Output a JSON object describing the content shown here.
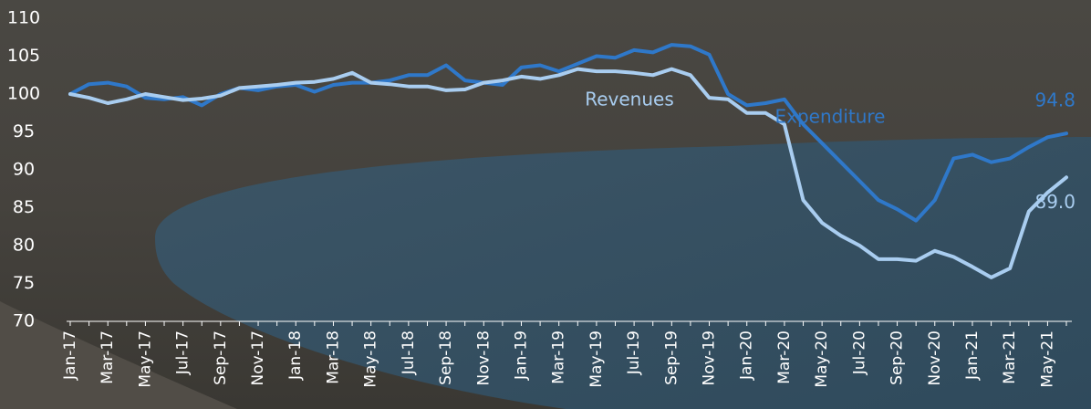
{
  "chart_data": {
    "type": "line",
    "categories": [
      "Jan-17",
      null,
      "Mar-17",
      null,
      "May-17",
      null,
      "Jul-17",
      null,
      "Sep-17",
      null,
      "Nov-17",
      null,
      "Jan-18",
      null,
      "Mar-18",
      null,
      "May-18",
      null,
      "Jul-18",
      null,
      "Sep-18",
      null,
      "Nov-18",
      null,
      "Jan-19",
      null,
      "Mar-19",
      null,
      "May-19",
      null,
      "Jul-19",
      null,
      "Sep-19",
      null,
      "Nov-19",
      null,
      "Jan-20",
      null,
      "Mar-20",
      null,
      "May-20",
      null,
      "Jul-20",
      null,
      "Sep-20",
      null,
      "Nov-20",
      null,
      "Jan-21",
      null,
      "Mar-21",
      null,
      "May-21",
      null
    ],
    "series": [
      {
        "name": "Expenditure",
        "color": "#2f78c9",
        "values": [
          100,
          101.3,
          101.5,
          101,
          99.5,
          99.3,
          99.6,
          98.5,
          100,
          100.8,
          100.5,
          101,
          101.2,
          100.3,
          101.2,
          101.5,
          101.5,
          101.8,
          102.5,
          102.5,
          103.8,
          101.8,
          101.5,
          101.2,
          103.5,
          103.8,
          103,
          104,
          105,
          104.8,
          105.8,
          105.5,
          106.5,
          106.3,
          105.2,
          100,
          98.5,
          98.8,
          99.3,
          96,
          93.5,
          91,
          88.5,
          86,
          84.8,
          83.3,
          86,
          91.5,
          92,
          91,
          91.5,
          93,
          94.3,
          94.8
        ],
        "value_labels": [
          null,
          null,
          null,
          null,
          null,
          null,
          null,
          null,
          null,
          null,
          null,
          null,
          null,
          null,
          null,
          null,
          null,
          null,
          null,
          null,
          null,
          null,
          null,
          null,
          null,
          null,
          null,
          null,
          null,
          null,
          null,
          null,
          null,
          null,
          null,
          null,
          null,
          null,
          null,
          null,
          null,
          null,
          null,
          null,
          null,
          null,
          null,
          null,
          null,
          null,
          null,
          null,
          null,
          "94.8"
        ]
      },
      {
        "name": "Revenues",
        "color": "#a9cdf0",
        "values": [
          100,
          99.5,
          98.8,
          99.3,
          100,
          99.6,
          99.2,
          99.4,
          99.8,
          100.8,
          101,
          101.2,
          101.5,
          101.6,
          102,
          102.8,
          101.5,
          101.3,
          101,
          101,
          100.5,
          100.6,
          101.5,
          101.8,
          102.3,
          102,
          102.5,
          103.3,
          103,
          103,
          102.8,
          102.5,
          103.3,
          102.5,
          99.5,
          99.3,
          97.5,
          97.5,
          96,
          86,
          83,
          81.3,
          80,
          78.2,
          78.2,
          78,
          79.3,
          78.5,
          77.2,
          75.8,
          77,
          84.5,
          87,
          89
        ],
        "value_labels": [
          null,
          null,
          null,
          null,
          null,
          null,
          null,
          null,
          null,
          null,
          null,
          null,
          null,
          null,
          null,
          null,
          null,
          null,
          null,
          null,
          null,
          null,
          null,
          null,
          null,
          null,
          null,
          null,
          null,
          null,
          null,
          null,
          null,
          null,
          null,
          null,
          null,
          null,
          null,
          null,
          null,
          null,
          null,
          null,
          null,
          null,
          null,
          null,
          null,
          null,
          null,
          null,
          null,
          "89.0"
        ]
      }
    ],
    "ylim": [
      70,
      110
    ],
    "yticks": [
      70,
      75,
      80,
      85,
      90,
      95,
      100,
      105,
      110
    ],
    "grid": false
  }
}
